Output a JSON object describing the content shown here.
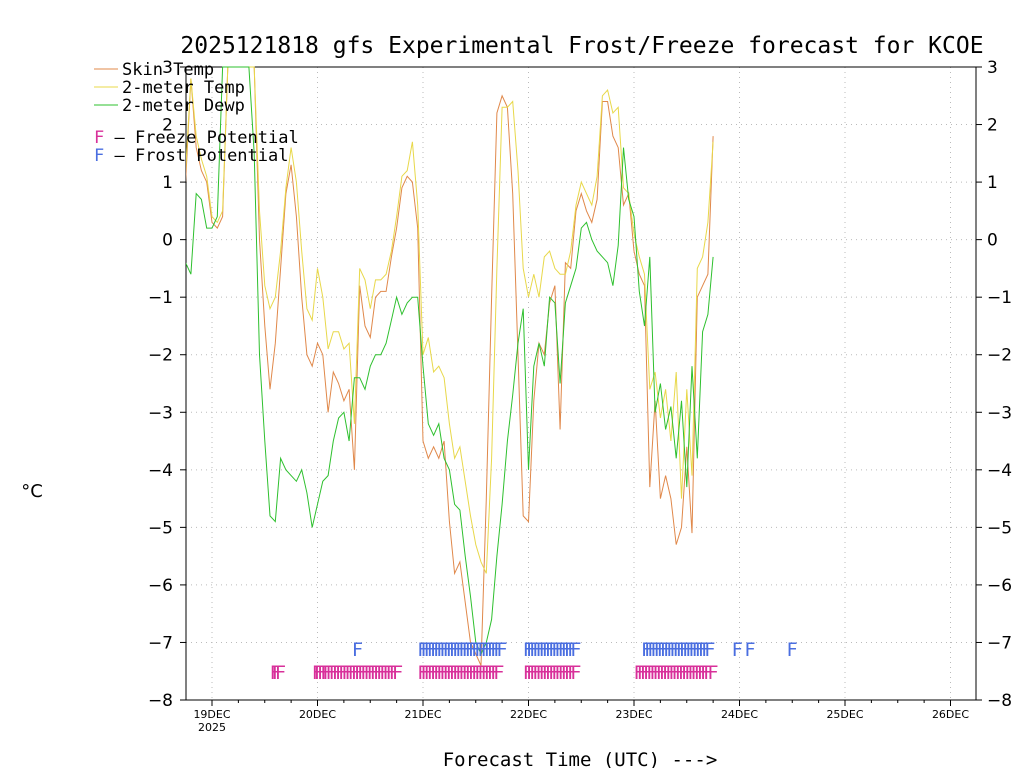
{
  "chart_data": {
    "type": "line",
    "title": "2025121818 gfs Experimental Frost/Freeze forecast for KCOE",
    "xlabel": "Forecast Time (UTC) --->",
    "ylabel": "°C",
    "ylim": [
      -8,
      3
    ],
    "xlim": [
      -0.25,
      7.25
    ],
    "y_ticks": [
      "−8",
      "−7",
      "−6",
      "−5",
      "−4",
      "−3",
      "−2",
      "−1",
      "0",
      "1",
      "2",
      "3"
    ],
    "x_ticks": [
      {
        "x": 0,
        "label": "19DEC",
        "sublabel": "2025"
      },
      {
        "x": 1,
        "label": "20DEC"
      },
      {
        "x": 2,
        "label": "21DEC"
      },
      {
        "x": 3,
        "label": "22DEC"
      },
      {
        "x": 4,
        "label": "23DEC"
      },
      {
        "x": 5,
        "label": "24DEC"
      },
      {
        "x": 6,
        "label": "25DEC"
      },
      {
        "x": 7,
        "label": "26DEC"
      }
    ],
    "grid": true,
    "legend_position": "top-left",
    "colors": {
      "skin": "#e0884a",
      "temp": "#e8d84a",
      "dewp": "#2ec02e",
      "freeze": "#d8309a",
      "frost": "#4a6ee0",
      "grid": "#bbbbbb"
    },
    "series": [
      {
        "name": "Skin Temp",
        "color": "#e0884a",
        "x": [
          -0.25,
          -0.2,
          -0.15,
          -0.1,
          -0.05,
          0,
          0.05,
          0.1,
          0.15,
          0.25,
          0.3,
          0.35,
          0.4,
          0.45,
          0.5,
          0.55,
          0.6,
          0.65,
          0.7,
          0.75,
          0.8,
          0.85,
          0.9,
          0.95,
          1,
          1.05,
          1.1,
          1.15,
          1.2,
          1.25,
          1.3,
          1.35,
          1.4,
          1.45,
          1.5,
          1.55,
          1.6,
          1.65,
          1.7,
          1.75,
          1.8,
          1.85,
          1.9,
          1.95,
          2,
          2.05,
          2.1,
          2.15,
          2.2,
          2.25,
          2.3,
          2.35,
          2.4,
          2.45,
          2.5,
          2.55,
          2.6,
          2.65,
          2.7,
          2.75,
          2.8,
          2.85,
          2.9,
          2.95,
          3,
          3.05,
          3.1,
          3.15,
          3.2,
          3.25,
          3.3,
          3.35,
          3.4,
          3.45,
          3.5,
          3.55,
          3.6,
          3.65,
          3.7,
          3.75,
          3.8,
          3.85,
          3.9,
          3.95,
          4,
          4.05,
          4.1,
          4.15,
          4.2,
          4.25,
          4.3,
          4.35,
          4.4,
          4.45,
          4.5,
          4.55,
          4.6,
          4.65,
          4.7,
          4.75
        ],
        "y": [
          1.0,
          2.8,
          1.6,
          1.2,
          1.0,
          0.3,
          0.2,
          0.4,
          3.0,
          3.0,
          3.0,
          3.0,
          3.0,
          0.0,
          -1.5,
          -2.6,
          -1.8,
          -0.5,
          0.8,
          1.3,
          0.4,
          -1.0,
          -2.0,
          -2.2,
          -1.8,
          -2.0,
          -3.0,
          -2.3,
          -2.5,
          -2.8,
          -2.6,
          -4.0,
          -0.8,
          -1.5,
          -1.7,
          -1.0,
          -0.9,
          -0.9,
          -0.3,
          0.2,
          0.9,
          1.1,
          1.0,
          0.2,
          -3.5,
          -3.8,
          -3.6,
          -3.8,
          -3.5,
          -4.9,
          -5.8,
          -5.6,
          -6.3,
          -7.0,
          -7.2,
          -7.4,
          -4.5,
          -1.0,
          2.2,
          2.5,
          2.3,
          0.8,
          -2.0,
          -4.8,
          -4.9,
          -2.8,
          -1.8,
          -2.0,
          -1.1,
          -0.8,
          -3.3,
          -0.4,
          -0.5,
          0.5,
          0.8,
          0.5,
          0.3,
          0.7,
          2.4,
          2.4,
          1.8,
          1.6,
          0.6,
          0.8,
          -0.2,
          -0.6,
          -0.8,
          -4.3,
          -2.8,
          -4.5,
          -4.1,
          -4.5,
          -5.3,
          -5.0,
          -3.6,
          -5.1,
          -1.0,
          -0.8,
          -0.6,
          1.8
        ]
      },
      {
        "name": "2-meter Temp",
        "color": "#e8d84a",
        "x": [
          -0.25,
          -0.2,
          -0.15,
          -0.1,
          -0.05,
          0,
          0.05,
          0.1,
          0.15,
          0.25,
          0.3,
          0.35,
          0.4,
          0.45,
          0.5,
          0.55,
          0.6,
          0.65,
          0.7,
          0.75,
          0.8,
          0.85,
          0.9,
          0.95,
          1,
          1.05,
          1.1,
          1.15,
          1.2,
          1.25,
          1.3,
          1.35,
          1.4,
          1.45,
          1.5,
          1.55,
          1.6,
          1.65,
          1.7,
          1.75,
          1.8,
          1.85,
          1.9,
          1.95,
          2,
          2.05,
          2.1,
          2.15,
          2.2,
          2.25,
          2.3,
          2.35,
          2.4,
          2.45,
          2.5,
          2.55,
          2.6,
          2.65,
          2.7,
          2.75,
          2.8,
          2.85,
          2.9,
          2.95,
          3,
          3.05,
          3.1,
          3.15,
          3.2,
          3.25,
          3.3,
          3.35,
          3.4,
          3.45,
          3.5,
          3.55,
          3.6,
          3.65,
          3.7,
          3.75,
          3.8,
          3.85,
          3.9,
          3.95,
          4,
          4.05,
          4.1,
          4.15,
          4.2,
          4.25,
          4.3,
          4.35,
          4.4,
          4.45,
          4.5,
          4.55,
          4.6,
          4.65,
          4.7,
          4.75
        ],
        "y": [
          1.2,
          2.8,
          1.8,
          1.4,
          1.1,
          0.4,
          0.3,
          0.5,
          3.0,
          3.0,
          3.0,
          3.0,
          3.0,
          0.5,
          -0.8,
          -1.2,
          -1.0,
          -0.2,
          0.9,
          1.6,
          1.0,
          -0.2,
          -1.2,
          -1.4,
          -0.5,
          -1.0,
          -1.9,
          -1.6,
          -1.6,
          -1.9,
          -1.8,
          -3.2,
          -0.5,
          -0.7,
          -1.2,
          -0.7,
          -0.7,
          -0.6,
          -0.2,
          0.4,
          1.1,
          1.2,
          1.7,
          0.6,
          -2.0,
          -1.7,
          -2.3,
          -2.2,
          -2.4,
          -3.2,
          -3.8,
          -3.6,
          -4.2,
          -4.8,
          -5.3,
          -5.6,
          -5.8,
          -3.8,
          -0.5,
          2.3,
          2.3,
          2.4,
          1.2,
          -0.5,
          -1.0,
          -0.6,
          -1.0,
          -0.3,
          -0.2,
          -0.5,
          -0.6,
          -0.6,
          -0.2,
          0.6,
          1.0,
          0.8,
          0.6,
          1.1,
          2.5,
          2.6,
          2.2,
          2.3,
          0.9,
          0.8,
          0.1,
          -0.3,
          -0.6,
          -2.6,
          -2.3,
          -3.1,
          -2.6,
          -3.5,
          -2.3,
          -4.5,
          -2.6,
          -4.1,
          -0.5,
          -0.3,
          0.3,
          1.7
        ]
      },
      {
        "name": "2-meter Dewp",
        "color": "#2ec02e",
        "x": [
          -0.25,
          -0.2,
          -0.15,
          -0.1,
          -0.05,
          0,
          0.05,
          0.1,
          0.15,
          0.25,
          0.3,
          0.35,
          0.4,
          0.45,
          0.5,
          0.55,
          0.6,
          0.65,
          0.7,
          0.75,
          0.8,
          0.85,
          0.9,
          0.95,
          1,
          1.05,
          1.1,
          1.15,
          1.2,
          1.25,
          1.3,
          1.35,
          1.4,
          1.45,
          1.5,
          1.55,
          1.6,
          1.65,
          1.7,
          1.75,
          1.8,
          1.85,
          1.9,
          1.95,
          2,
          2.05,
          2.1,
          2.15,
          2.2,
          2.25,
          2.3,
          2.35,
          2.4,
          2.45,
          2.5,
          2.55,
          2.6,
          2.65,
          2.7,
          2.75,
          2.8,
          2.85,
          2.9,
          2.95,
          3,
          3.05,
          3.1,
          3.15,
          3.2,
          3.25,
          3.3,
          3.35,
          3.4,
          3.45,
          3.5,
          3.55,
          3.6,
          3.65,
          3.7,
          3.75,
          3.8,
          3.85,
          3.9,
          3.95,
          4,
          4.05,
          4.1,
          4.15,
          4.2,
          4.25,
          4.3,
          4.35,
          4.4,
          4.45,
          4.5,
          4.55,
          4.6,
          4.65,
          4.7,
          4.75
        ],
        "y": [
          -0.4,
          -0.6,
          0.8,
          0.7,
          0.2,
          0.2,
          0.4,
          3.0,
          3.0,
          3.0,
          3.0,
          3.0,
          1.5,
          -2.0,
          -3.5,
          -4.8,
          -4.9,
          -3.8,
          -4.0,
          -4.1,
          -4.2,
          -4.0,
          -4.4,
          -5.0,
          -4.6,
          -4.2,
          -4.1,
          -3.5,
          -3.1,
          -3.0,
          -3.5,
          -2.4,
          -2.4,
          -2.6,
          -2.2,
          -2.0,
          -2.0,
          -1.8,
          -1.4,
          -1.0,
          -1.3,
          -1.1,
          -1.0,
          -1.0,
          -2.2,
          -3.2,
          -3.4,
          -3.2,
          -3.8,
          -4.0,
          -4.6,
          -4.7,
          -5.5,
          -6.2,
          -7.0,
          -7.2,
          -7.0,
          -6.6,
          -5.5,
          -4.6,
          -3.5,
          -2.7,
          -1.8,
          -1.2,
          -4.0,
          -2.2,
          -1.8,
          -2.2,
          -1.0,
          -1.1,
          -2.5,
          -1.1,
          -0.8,
          -0.5,
          0.2,
          0.3,
          0.0,
          -0.2,
          -0.3,
          -0.4,
          -0.8,
          -0.1,
          1.6,
          0.7,
          0.4,
          -0.9,
          -1.5,
          -0.3,
          -3.0,
          -2.5,
          -3.3,
          -2.9,
          -3.8,
          -2.8,
          -4.3,
          -2.2,
          -3.8,
          -1.6,
          -1.3,
          -0.3
        ]
      }
    ],
    "freeze_potential": {
      "label": "F",
      "y": -7.5,
      "x": [
        0.6,
        0.62,
        0.65,
        1.0,
        1.02,
        1.05,
        1.08,
        1.1,
        1.13,
        1.16,
        1.19,
        1.22,
        1.25,
        1.28,
        1.31,
        1.34,
        1.37,
        1.4,
        1.43,
        1.46,
        1.49,
        1.52,
        1.55,
        1.58,
        1.61,
        1.64,
        1.67,
        1.7,
        1.73,
        1.76,
        2.0,
        2.03,
        2.06,
        2.09,
        2.12,
        2.15,
        2.18,
        2.21,
        2.24,
        2.27,
        2.3,
        2.33,
        2.36,
        2.39,
        2.42,
        2.45,
        2.48,
        2.51,
        2.54,
        2.57,
        2.6,
        2.63,
        2.66,
        2.69,
        2.72,
        3.0,
        3.03,
        3.06,
        3.09,
        3.12,
        3.15,
        3.18,
        3.21,
        3.24,
        3.27,
        3.3,
        3.33,
        3.36,
        3.39,
        3.42,
        3.45,
        4.05,
        4.08,
        4.11,
        4.14,
        4.17,
        4.2,
        4.23,
        4.26,
        4.29,
        4.32,
        4.35,
        4.38,
        4.41,
        4.44,
        4.47,
        4.5,
        4.53,
        4.56,
        4.59,
        4.62,
        4.65,
        4.68,
        4.71,
        4.75
      ]
    },
    "frost_potential": {
      "label": "F",
      "y": -7.1,
      "x": [
        1.38,
        2.0,
        2.03,
        2.06,
        2.09,
        2.12,
        2.15,
        2.18,
        2.21,
        2.24,
        2.27,
        2.3,
        2.33,
        2.36,
        2.39,
        2.42,
        2.45,
        2.48,
        2.51,
        2.54,
        2.57,
        2.6,
        2.63,
        2.66,
        2.69,
        2.72,
        2.75,
        3.0,
        3.03,
        3.06,
        3.09,
        3.12,
        3.15,
        3.18,
        3.21,
        3.24,
        3.27,
        3.3,
        3.33,
        3.36,
        3.39,
        3.42,
        3.45,
        4.12,
        4.15,
        4.18,
        4.21,
        4.24,
        4.27,
        4.3,
        4.33,
        4.36,
        4.39,
        4.42,
        4.45,
        4.48,
        4.51,
        4.54,
        4.57,
        4.6,
        4.63,
        4.66,
        4.69,
        4.72,
        4.98,
        5.1,
        5.5
      ]
    },
    "legend": {
      "series": [
        {
          "label": "Skin Temp",
          "color": "#e0884a"
        },
        {
          "label": "2-meter Temp",
          "color": "#e8d84a"
        },
        {
          "label": "2-meter Dewp",
          "color": "#2ec02e"
        }
      ],
      "markers": [
        {
          "glyph": "F",
          "text": " – Freeze Potential",
          "color": "#d8309a"
        },
        {
          "glyph": "F",
          "text": " – Frost Potential",
          "color": "#4a6ee0"
        }
      ]
    }
  }
}
